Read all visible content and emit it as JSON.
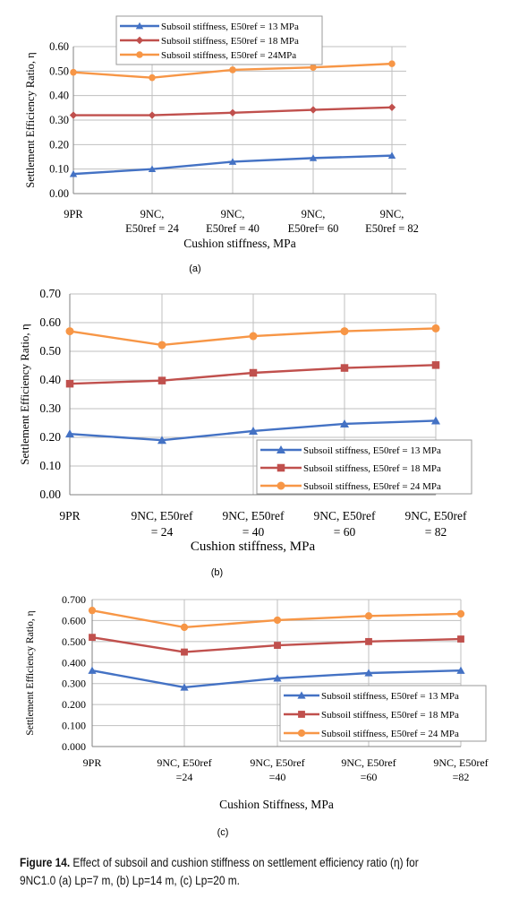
{
  "colors": {
    "s13": "#4472C4",
    "s18": "#C0504D",
    "s24": "#F79646",
    "grid": "#BFBFBF",
    "axis": "#808080",
    "text": "#000000"
  },
  "chart_data": [
    {
      "type": "line",
      "panel_label": "(a)",
      "ylabel": "Settlement Efficiency Ratio, η",
      "xlabel": "Cushion stiffness, MPa",
      "categories": [
        [
          "9PR"
        ],
        [
          "9NC,",
          "E50ref = 24"
        ],
        [
          "9NC,",
          "E50ref = 40"
        ],
        [
          "9NC,",
          "E50ref= 60"
        ],
        [
          "9NC,",
          "E50ref = 82"
        ]
      ],
      "ylim": [
        0,
        0.6
      ],
      "yticks": [
        "0.00",
        "0.10",
        "0.20",
        "0.30",
        "0.40",
        "0.50",
        "0.60"
      ],
      "legend_position": "top-center",
      "series": [
        {
          "name": "Subsoil stiffness, E50ref = 13 MPa",
          "color_key": "s13",
          "marker": "triangle",
          "values": [
            0.08,
            0.1,
            0.13,
            0.145,
            0.155
          ]
        },
        {
          "name": "Subsoil stiffness, E50ref = 18 MPa",
          "color_key": "s18",
          "marker": "diamond",
          "values": [
            0.32,
            0.32,
            0.33,
            0.342,
            0.352
          ]
        },
        {
          "name": "Subsoil stiffness, E50ref = 24MPa",
          "color_key": "s24",
          "marker": "circle",
          "values": [
            0.495,
            0.473,
            0.505,
            0.515,
            0.53
          ]
        }
      ]
    },
    {
      "type": "line",
      "panel_label": "(b)",
      "ylabel": "Settlement Efficiency Ratio, η",
      "xlabel": "Cushion stiffness, MPa",
      "categories": [
        [
          "9PR"
        ],
        [
          "9NC, E50ref",
          "= 24"
        ],
        [
          "9NC, E50ref",
          "= 40"
        ],
        [
          "9NC, E50ref",
          "= 60"
        ],
        [
          "9NC, E50ref",
          "= 82"
        ]
      ],
      "ylim": [
        0,
        0.7
      ],
      "yticks": [
        "0.00",
        "0.10",
        "0.20",
        "0.30",
        "0.40",
        "0.50",
        "0.60",
        "0.70"
      ],
      "legend_position": "bottom-right",
      "series": [
        {
          "name": "Subsoil stiffness, E50ref = 13 MPa",
          "color_key": "s13",
          "marker": "triangle",
          "values": [
            0.212,
            0.19,
            0.222,
            0.247,
            0.258
          ]
        },
        {
          "name": "Subsoil stiffness, E50ref = 18 MPa",
          "color_key": "s18",
          "marker": "square",
          "values": [
            0.387,
            0.398,
            0.425,
            0.442,
            0.452
          ]
        },
        {
          "name": "Subsoil stiffness, E50ref = 24 MPa",
          "color_key": "s24",
          "marker": "circle",
          "values": [
            0.57,
            0.522,
            0.553,
            0.57,
            0.58
          ]
        }
      ]
    },
    {
      "type": "line",
      "panel_label": "(c)",
      "ylabel": "Settlement Efficiency Ratio, η",
      "xlabel": "Cushion Stiffness, MPa",
      "categories": [
        [
          "9PR"
        ],
        [
          "9NC, E50ref",
          "=24"
        ],
        [
          "9NC, E50ref",
          "=40"
        ],
        [
          "9NC, E50ref",
          "=60"
        ],
        [
          "9NC, E50ref",
          "=82"
        ]
      ],
      "ylim": [
        0,
        0.7
      ],
      "yticks": [
        "0.000",
        "0.100",
        "0.200",
        "0.300",
        "0.400",
        "0.500",
        "0.600",
        "0.700"
      ],
      "legend_position": "bottom-right",
      "series": [
        {
          "name": "Subsoil stiffness, E50ref = 13 MPa",
          "color_key": "s13",
          "marker": "triangle",
          "values": [
            0.362,
            0.282,
            0.325,
            0.35,
            0.362
          ]
        },
        {
          "name": "Subsoil stiffness, E50ref = 18 MPa",
          "color_key": "s18",
          "marker": "square",
          "values": [
            0.52,
            0.45,
            0.482,
            0.5,
            0.512
          ]
        },
        {
          "name": "Subsoil stiffness, E50ref = 24 MPa",
          "color_key": "s24",
          "marker": "circle",
          "values": [
            0.648,
            0.568,
            0.602,
            0.622,
            0.632
          ]
        }
      ]
    }
  ],
  "caption": {
    "label": "Figure 14.",
    "text": " Effect of subsoil and cushion stiffness on settlement efficiency ratio (η) for",
    "line2": "9NC1.0 (a) Lp=7 m, (b) Lp=14 m, (c) Lp=20 m."
  }
}
